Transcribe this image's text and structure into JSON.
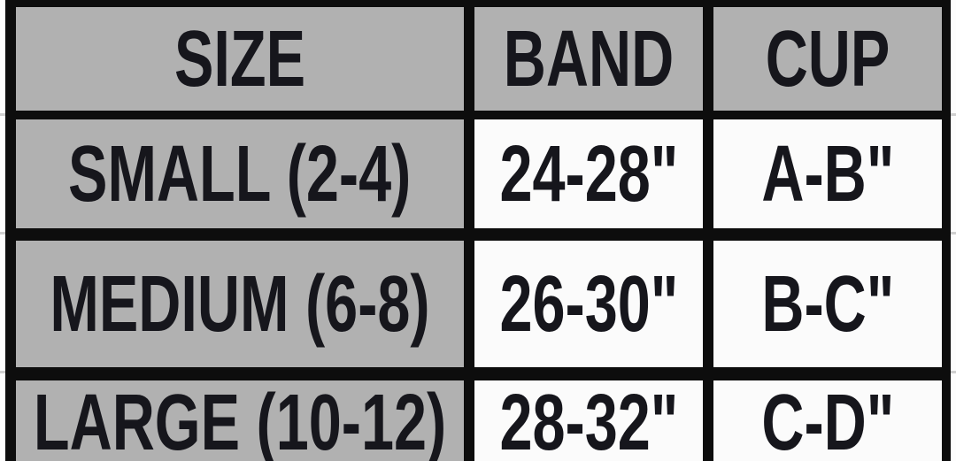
{
  "chart_data": {
    "type": "table",
    "columns": [
      {
        "key": "size",
        "label": "SIZE"
      },
      {
        "key": "band",
        "label": "BAND"
      },
      {
        "key": "cup",
        "label": "CUP"
      }
    ],
    "rows": [
      {
        "size": "SMALL (2-4)",
        "band": "24-28\"",
        "cup": "A-B\""
      },
      {
        "size": "MEDIUM (6-8)",
        "band": "26-30\"",
        "cup": "B-C\""
      },
      {
        "size": "LARGE (10-12)",
        "band": "28-32\"",
        "cup": "C-D\""
      }
    ]
  },
  "colors": {
    "header_bg": "#b1b1b1",
    "size_column_bg": "#b1b1b1",
    "value_cell_bg": "#fbfbfb",
    "table_border": "#0d0d0d",
    "text": "#16161c",
    "page_bg": "#fdfdfd",
    "margin_gridline": "#cfcfcf"
  }
}
